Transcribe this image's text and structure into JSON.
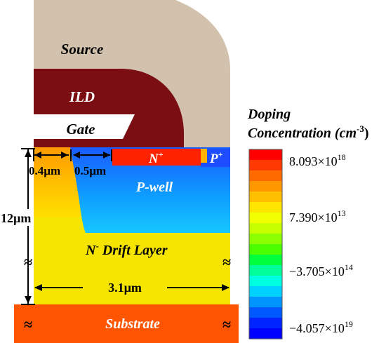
{
  "labels": {
    "source": "Source",
    "ild": "ILD",
    "gate": "Gate",
    "n_plus": "N",
    "n_plus_sup": "+",
    "p_plus": "P",
    "p_plus_sup": "+",
    "p_well": "P-well",
    "drift_pre": "N",
    "drift_sup": "-",
    "drift_post": " Drift Layer",
    "substrate": "Substrate"
  },
  "dimensions": {
    "gate_overlap": "0.4µm",
    "channel": "0.5µm",
    "depth": "12µm",
    "width": "3.1µm"
  },
  "break_symbol": "≈",
  "colorbar": {
    "title_line1": "Doping",
    "title_line2_main": "Concentration (cm",
    "title_line2_sup": "-3",
    "title_line2_end": ")",
    "ticks": [
      {
        "mantissa": "8.093",
        "times": "×",
        "base": "10",
        "exp": "18"
      },
      {
        "mantissa": "7.390",
        "times": "×",
        "base": "10",
        "exp": "13"
      },
      {
        "mantissa": "−3.705",
        "times": "×",
        "base": "10",
        "exp": "14"
      },
      {
        "mantissa": "−4.057",
        "times": "×",
        "base": "10",
        "exp": "19"
      }
    ],
    "colors": [
      "#ff0000",
      "#ff3a00",
      "#ff6a00",
      "#ff9800",
      "#ffbf00",
      "#ffe600",
      "#f2ff00",
      "#c8ff00",
      "#8cff00",
      "#4cff00",
      "#00ff3c",
      "#00ff99",
      "#00ffe0",
      "#00d2ff",
      "#0094ff",
      "#0058ff",
      "#0024ff",
      "#0000ff"
    ]
  }
}
